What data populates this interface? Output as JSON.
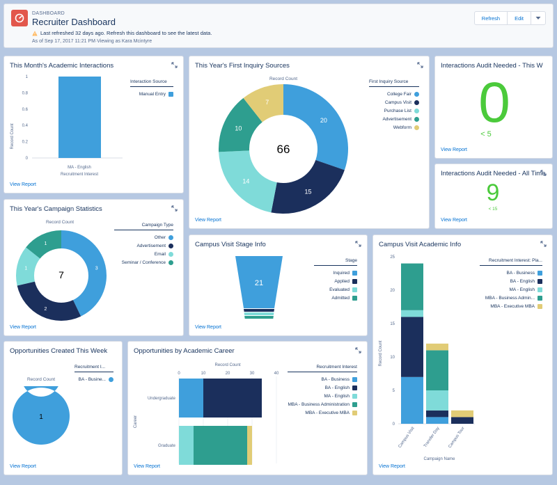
{
  "header": {
    "eyebrow": "DASHBOARD",
    "title": "Recruiter Dashboard",
    "warning": "Last refreshed 32 days ago. Refresh this dashboard to see the latest data.",
    "as_of": "As of Sep 17, 2017 11:21 PM·Viewing as Kara Mcintyre",
    "refresh_label": "Refresh",
    "edit_label": "Edit",
    "icon": "dashboard-icon",
    "menu_icon": "chevron-down-icon"
  },
  "colors": {
    "blue": "#3f9fdc",
    "navy": "#1b2f5c",
    "teal": "#2e9e8f",
    "light_teal": "#7fdbd9",
    "gold": "#e1cc76",
    "green": "#4bca3b",
    "link": "#0070d2"
  },
  "view_report": "View Report",
  "cards": {
    "academic_interactions": {
      "title": "This Month's Academic Interactions",
      "ylabel": "Record Count",
      "xlabel": "Recruitment Interest",
      "category": "MA - English",
      "legend_title": "Interaction Source",
      "legend": [
        "Manual Entry"
      ],
      "chart_data": {
        "type": "bar",
        "categories": [
          "MA - English"
        ],
        "series": [
          {
            "name": "Manual Entry",
            "values": [
              1
            ]
          }
        ],
        "ylim": [
          0,
          1
        ],
        "yticks": [
          "0",
          "0.2",
          "0.4",
          "0.6",
          "0.8",
          "1"
        ],
        "xlabel": "Recruitment Interest",
        "ylabel": "Record Count"
      }
    },
    "first_inquiry": {
      "title": "This Year's First Inquiry Sources",
      "subtitle": "Record Count",
      "total": "66",
      "legend_title": "First Inquiry Source",
      "legend": [
        "College Fair",
        "Campus Visit",
        "Purchase List",
        "Advertisement",
        "Webform"
      ],
      "chart_data": {
        "type": "pie",
        "categories": [
          "College Fair",
          "Campus Visit",
          "Purchase List",
          "Advertisement",
          "Webform"
        ],
        "values": [
          20,
          15,
          14,
          10,
          7
        ]
      }
    },
    "audit_needed_month": {
      "title": "Interactions Audit Needed - This W",
      "value": "0",
      "target": "< 5"
    },
    "audit_needed_all": {
      "title": "Interactions Audit Needed - All Time",
      "value": "9",
      "target": "< 15"
    },
    "campaign_stats": {
      "title": "This Year's Campaign Statistics",
      "subtitle": "Record Count",
      "total": "7",
      "legend_title": "Campaign Type",
      "legend": [
        "Other",
        "Advertisement",
        "Email",
        "Seminar / Conference"
      ],
      "chart_data": {
        "type": "pie",
        "categories": [
          "Other",
          "Advertisement",
          "Email",
          "Seminar / Conference"
        ],
        "values": [
          3,
          2,
          1,
          1
        ]
      }
    },
    "campus_visit_stage": {
      "title": "Campus Visit Stage Info",
      "legend_title": "Stage",
      "legend": [
        "Inquired",
        "Applied",
        "Evaluated",
        "Admitted"
      ],
      "chart_data": {
        "type": "funnel",
        "categories": [
          "Inquired",
          "Applied",
          "Evaluated",
          "Admitted"
        ],
        "values": [
          21,
          1,
          1,
          1
        ],
        "label": "21"
      }
    },
    "campus_visit_academic": {
      "title": "Campus Visit Academic Info",
      "ylabel": "Record Count",
      "xlabel": "Campaign Name",
      "legend_title": "Recruitment Interest: Pla...",
      "legend": [
        "BA - Business",
        "BA - English",
        "MA - English",
        "MBA - Business Admin...",
        "MBA - Executive MBA"
      ],
      "chart_data": {
        "type": "bar",
        "stacked": true,
        "categories": [
          "Campus Visit",
          "Transfer Day",
          "Campus Tour"
        ],
        "series": [
          {
            "name": "BA - Business",
            "values": [
              7,
              1,
              0
            ]
          },
          {
            "name": "BA - English",
            "values": [
              9,
              1,
              1
            ]
          },
          {
            "name": "MA - English",
            "values": [
              1,
              3,
              0
            ]
          },
          {
            "name": "MBA - Business Admin...",
            "values": [
              7,
              6,
              0
            ]
          },
          {
            "name": "MBA - Executive MBA",
            "values": [
              0,
              1,
              1
            ]
          }
        ],
        "ylim": [
          0,
          25
        ],
        "yticks": [
          "0",
          "5",
          "10",
          "15",
          "20",
          "25"
        ],
        "xlabel": "Campaign Name",
        "ylabel": "Record Count"
      }
    },
    "opportunities_week": {
      "title": "Opportunities Created This Week",
      "subtitle": "Record Count",
      "total": "1",
      "legend_title": "Recruitment I...",
      "legend": [
        "BA - Busine..."
      ],
      "chart_data": {
        "type": "pie",
        "categories": [
          "BA - Busine..."
        ],
        "values": [
          1
        ]
      }
    },
    "opportunities_career": {
      "title": "Opportunities by Academic Career",
      "subtitle": "Record Count",
      "ylabel": "Career",
      "legend_title": "Recruitment Interest",
      "legend": [
        "BA - Business",
        "BA - English",
        "MA - English",
        "MBA - Business Administration",
        "MBA - Executive MBA"
      ],
      "chart_data": {
        "type": "bar",
        "orientation": "horizontal",
        "stacked": true,
        "categories": [
          "Undergraduate",
          "Graduate"
        ],
        "series": [
          {
            "name": "BA - Business",
            "values": [
              10,
              0
            ]
          },
          {
            "name": "BA - English",
            "values": [
              24,
              0
            ]
          },
          {
            "name": "MA - English",
            "values": [
              0,
              6
            ]
          },
          {
            "name": "MBA - Business Administration",
            "values": [
              0,
              22
            ]
          },
          {
            "name": "MBA - Executive MBA",
            "values": [
              0,
              2
            ]
          }
        ],
        "xlim": [
          0,
          40
        ],
        "xticks": [
          "0",
          "10",
          "20",
          "30",
          "40"
        ]
      }
    }
  }
}
